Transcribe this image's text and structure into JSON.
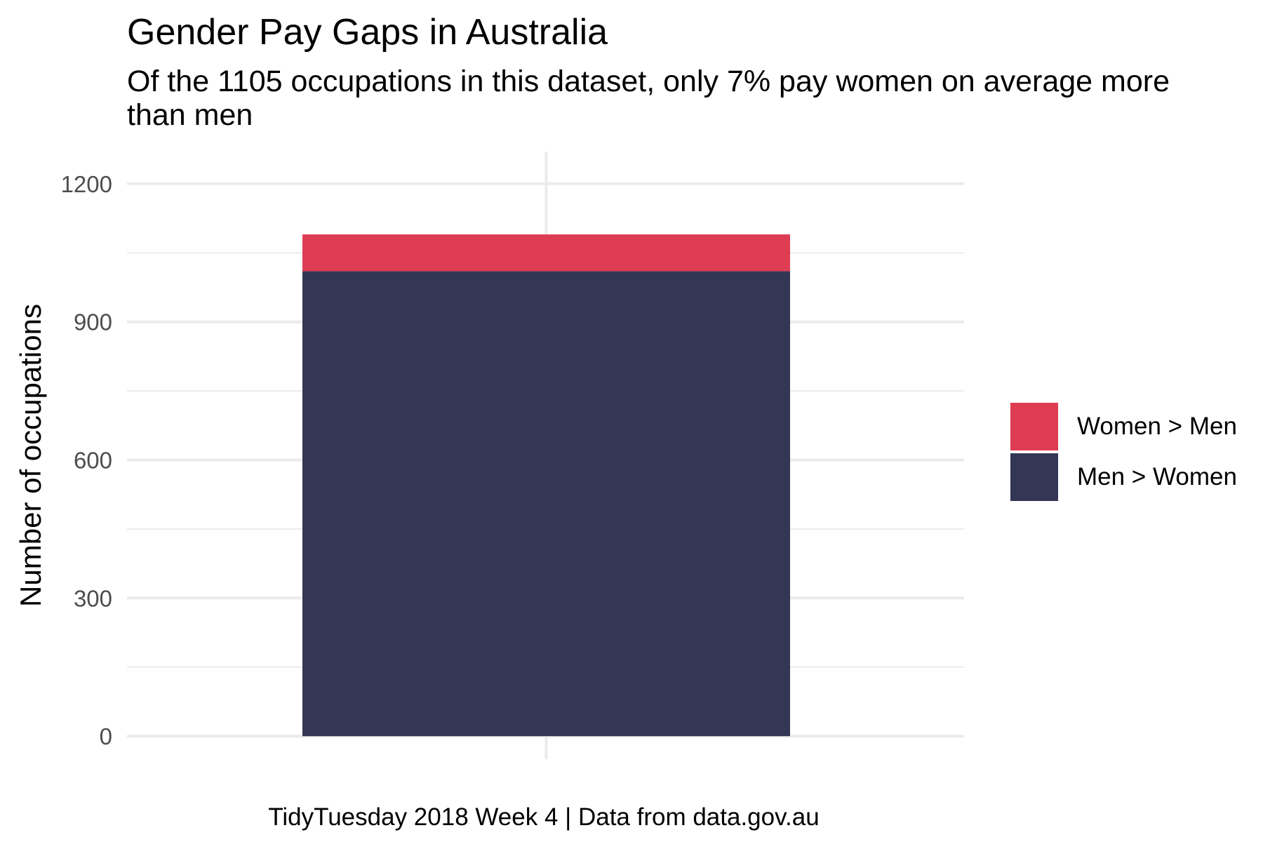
{
  "title": "Gender Pay Gaps in Australia",
  "subtitle": "Of the 1105 occupations in this dataset, only 7% pay women on average more than men",
  "caption": "TidyTuesday 2018 Week 4 | Data from data.gov.au",
  "legend": {
    "items": [
      {
        "label": "Women > Men",
        "color": "#DE3C53"
      },
      {
        "label": "Men > Women",
        "color": "#333654"
      }
    ]
  },
  "chart_data": {
    "type": "bar",
    "stacked": true,
    "categories": [
      ""
    ],
    "series": [
      {
        "name": "Men > Women",
        "values": [
          1010
        ],
        "color": "#333654"
      },
      {
        "name": "Women > Men",
        "values": [
          80
        ],
        "color": "#DE3C53"
      }
    ],
    "ylabel": "Number of occupations",
    "xlabel": "",
    "ylim": [
      -50,
      1270
    ],
    "yticks": [
      0,
      300,
      600,
      900,
      1200
    ],
    "yticks_minor": [
      150,
      450,
      750,
      1050
    ],
    "grid": true,
    "legend_position": "right"
  }
}
